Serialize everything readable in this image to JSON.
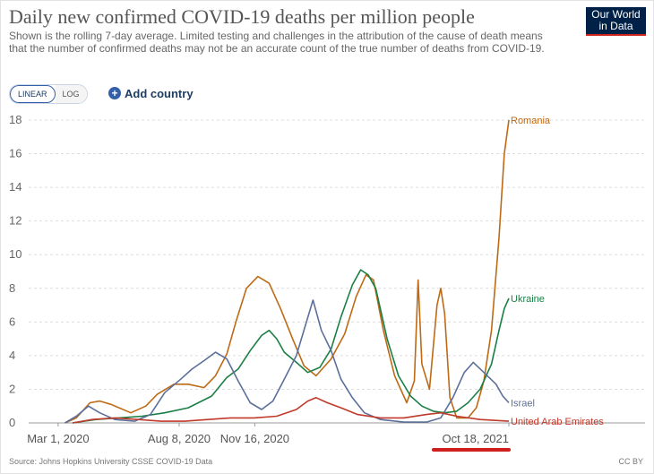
{
  "header": {
    "title": "Daily new confirmed COVID-19 deaths per million people",
    "subtitle": "Shown is the rolling 7-day average. Limited testing and challenges in the attribution of the cause of death means that the number of confirmed deaths may not be an accurate count of the true number of deaths from COVID-19.",
    "logo_line1": "Our World",
    "logo_line2": "in Data"
  },
  "controls": {
    "linear_label": "LINEAR",
    "log_label": "LOG",
    "add_country_label": "Add country"
  },
  "footer": {
    "source": "Source: Johns Hopkins University CSSE COVID-19 Data",
    "license": "CC BY"
  },
  "colors": {
    "Romania": "#be6a15",
    "Ukraine": "#1a7f45",
    "Israel": "#5b6f9a",
    "United Arab Emirates": "#c0392b",
    "highlight": "#ce1e1e"
  },
  "chart_data": {
    "type": "line",
    "title": "Daily new confirmed COVID-19 deaths per million people",
    "ylim": [
      0,
      18
    ],
    "y_ticks": [
      0,
      2,
      4,
      6,
      8,
      10,
      12,
      14,
      16,
      18
    ],
    "x_range": [
      "2020-01-22",
      "2021-10-18"
    ],
    "x_tick_labels": [
      {
        "date": "2020-03-01",
        "label": "Mar 1, 2020"
      },
      {
        "date": "2020-08-08",
        "label": "Aug 8, 2020"
      },
      {
        "date": "2020-11-16",
        "label": "Nov 16, 2020"
      },
      {
        "date": "2021-10-18",
        "label": "Oct 18, 2021",
        "highlighted": true
      }
    ],
    "grid": "horizontal-dashed",
    "series": [
      {
        "name": "Romania",
        "points": [
          [
            "2020-03-10",
            0
          ],
          [
            "2020-03-25",
            0.3
          ],
          [
            "2020-04-12",
            1.2
          ],
          [
            "2020-04-25",
            1.3
          ],
          [
            "2020-05-10",
            1.1
          ],
          [
            "2020-06-05",
            0.6
          ],
          [
            "2020-06-25",
            1.0
          ],
          [
            "2020-07-10",
            1.7
          ],
          [
            "2020-08-01",
            2.3
          ],
          [
            "2020-08-20",
            2.3
          ],
          [
            "2020-09-10",
            2.1
          ],
          [
            "2020-09-25",
            2.8
          ],
          [
            "2020-10-10",
            4.1
          ],
          [
            "2020-10-22",
            6.0
          ],
          [
            "2020-11-05",
            8.0
          ],
          [
            "2020-11-20",
            8.7
          ],
          [
            "2020-12-05",
            8.3
          ],
          [
            "2020-12-20",
            6.8
          ],
          [
            "2021-01-05",
            5.0
          ],
          [
            "2021-01-20",
            3.4
          ],
          [
            "2021-02-05",
            2.8
          ],
          [
            "2021-02-25",
            3.8
          ],
          [
            "2021-03-15",
            5.3
          ],
          [
            "2021-03-30",
            7.5
          ],
          [
            "2021-04-12",
            8.8
          ],
          [
            "2021-04-22",
            8.5
          ],
          [
            "2021-05-05",
            5.5
          ],
          [
            "2021-05-20",
            2.8
          ],
          [
            "2021-06-05",
            1.2
          ],
          [
            "2021-06-15",
            2.5
          ],
          [
            "2021-06-20",
            8.5
          ],
          [
            "2021-06-25",
            3.5
          ],
          [
            "2021-07-05",
            2.0
          ],
          [
            "2021-07-15",
            7.0
          ],
          [
            "2021-07-20",
            8.0
          ],
          [
            "2021-07-25",
            6.5
          ],
          [
            "2021-08-01",
            1.5
          ],
          [
            "2021-08-10",
            0.3
          ],
          [
            "2021-08-25",
            0.3
          ],
          [
            "2021-09-05",
            0.9
          ],
          [
            "2021-09-15",
            2.5
          ],
          [
            "2021-09-25",
            5.5
          ],
          [
            "2021-10-05",
            11.0
          ],
          [
            "2021-10-12",
            16.0
          ],
          [
            "2021-10-18",
            18.0
          ]
        ]
      },
      {
        "name": "Ukraine",
        "points": [
          [
            "2020-03-20",
            0
          ],
          [
            "2020-04-20",
            0.2
          ],
          [
            "2020-05-20",
            0.3
          ],
          [
            "2020-06-20",
            0.4
          ],
          [
            "2020-07-20",
            0.6
          ],
          [
            "2020-08-20",
            0.9
          ],
          [
            "2020-09-20",
            1.6
          ],
          [
            "2020-10-10",
            2.7
          ],
          [
            "2020-10-25",
            3.2
          ],
          [
            "2020-11-10",
            4.3
          ],
          [
            "2020-11-25",
            5.2
          ],
          [
            "2020-12-05",
            5.5
          ],
          [
            "2020-12-15",
            5.0
          ],
          [
            "2020-12-25",
            4.2
          ],
          [
            "2021-01-10",
            3.6
          ],
          [
            "2021-01-25",
            3.0
          ],
          [
            "2021-02-10",
            3.3
          ],
          [
            "2021-02-25",
            4.4
          ],
          [
            "2021-03-10",
            6.3
          ],
          [
            "2021-03-25",
            8.2
          ],
          [
            "2021-04-05",
            9.1
          ],
          [
            "2021-04-15",
            8.8
          ],
          [
            "2021-04-25",
            8.0
          ],
          [
            "2021-05-10",
            5.0
          ],
          [
            "2021-05-25",
            2.8
          ],
          [
            "2021-06-10",
            1.6
          ],
          [
            "2021-06-25",
            1.0
          ],
          [
            "2021-07-10",
            0.7
          ],
          [
            "2021-07-25",
            0.6
          ],
          [
            "2021-08-10",
            0.7
          ],
          [
            "2021-08-25",
            1.2
          ],
          [
            "2021-09-10",
            2.0
          ],
          [
            "2021-09-25",
            3.5
          ],
          [
            "2021-10-05",
            5.5
          ],
          [
            "2021-10-12",
            6.8
          ],
          [
            "2021-10-18",
            7.4
          ]
        ]
      },
      {
        "name": "Israel",
        "points": [
          [
            "2020-03-10",
            0
          ],
          [
            "2020-03-25",
            0.4
          ],
          [
            "2020-04-10",
            1.0
          ],
          [
            "2020-04-25",
            0.6
          ],
          [
            "2020-05-15",
            0.2
          ],
          [
            "2020-06-10",
            0.1
          ],
          [
            "2020-07-01",
            0.5
          ],
          [
            "2020-07-20",
            1.8
          ],
          [
            "2020-08-10",
            2.6
          ],
          [
            "2020-08-25",
            3.2
          ],
          [
            "2020-09-10",
            3.7
          ],
          [
            "2020-09-25",
            4.2
          ],
          [
            "2020-10-10",
            3.8
          ],
          [
            "2020-10-25",
            2.5
          ],
          [
            "2020-11-10",
            1.2
          ],
          [
            "2020-11-25",
            0.8
          ],
          [
            "2020-12-10",
            1.3
          ],
          [
            "2020-12-25",
            2.6
          ],
          [
            "2021-01-10",
            4.0
          ],
          [
            "2021-01-22",
            5.8
          ],
          [
            "2021-02-01",
            7.3
          ],
          [
            "2021-02-12",
            5.5
          ],
          [
            "2021-02-25",
            4.3
          ],
          [
            "2021-03-10",
            2.6
          ],
          [
            "2021-03-25",
            1.5
          ],
          [
            "2021-04-10",
            0.6
          ],
          [
            "2021-05-01",
            0.2
          ],
          [
            "2021-06-01",
            0.05
          ],
          [
            "2021-07-01",
            0.05
          ],
          [
            "2021-07-20",
            0.3
          ],
          [
            "2021-08-05",
            1.5
          ],
          [
            "2021-08-20",
            3.0
          ],
          [
            "2021-09-01",
            3.6
          ],
          [
            "2021-09-15",
            3.0
          ],
          [
            "2021-10-01",
            2.3
          ],
          [
            "2021-10-10",
            1.6
          ],
          [
            "2021-10-18",
            1.2
          ]
        ]
      },
      {
        "name": "United Arab Emirates",
        "points": [
          [
            "2020-03-20",
            0
          ],
          [
            "2020-04-15",
            0.2
          ],
          [
            "2020-05-15",
            0.3
          ],
          [
            "2020-06-15",
            0.2
          ],
          [
            "2020-07-15",
            0.1
          ],
          [
            "2020-08-15",
            0.1
          ],
          [
            "2020-09-15",
            0.2
          ],
          [
            "2020-10-15",
            0.3
          ],
          [
            "2020-11-15",
            0.3
          ],
          [
            "2020-12-15",
            0.4
          ],
          [
            "2021-01-10",
            0.8
          ],
          [
            "2021-01-25",
            1.3
          ],
          [
            "2021-02-05",
            1.5
          ],
          [
            "2021-02-20",
            1.2
          ],
          [
            "2021-03-10",
            0.9
          ],
          [
            "2021-04-01",
            0.5
          ],
          [
            "2021-05-01",
            0.3
          ],
          [
            "2021-06-01",
            0.3
          ],
          [
            "2021-07-01",
            0.5
          ],
          [
            "2021-07-20",
            0.6
          ],
          [
            "2021-08-10",
            0.4
          ],
          [
            "2021-09-10",
            0.2
          ],
          [
            "2021-10-18",
            0.1
          ]
        ]
      }
    ]
  }
}
